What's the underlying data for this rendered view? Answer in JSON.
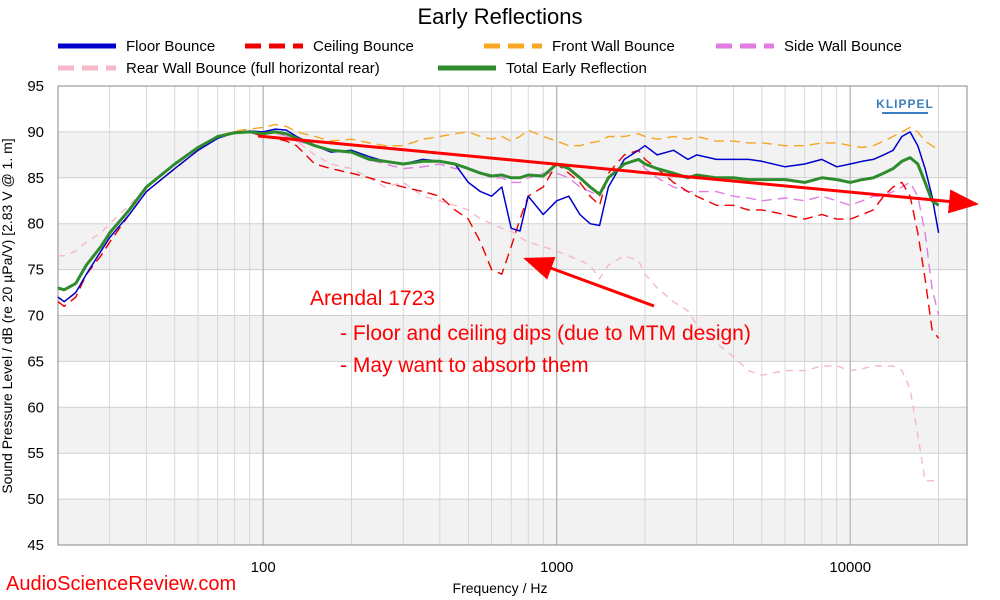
{
  "chart_data": {
    "type": "line",
    "title": "Early Reflections",
    "xlabel": "Frequency / Hz",
    "ylabel": "Sound Pressure Level / dB (re 20 µPa/V)  [2.83  V @ 1. m]",
    "x_scale": "log",
    "xlim": [
      20,
      25000
    ],
    "ylim": [
      45,
      95
    ],
    "x_ticks": [
      100,
      1000,
      10000
    ],
    "x_tick_labels": [
      "100",
      "1000",
      "10000"
    ],
    "y_ticks": [
      45,
      50,
      55,
      60,
      65,
      70,
      75,
      80,
      85,
      90,
      95
    ],
    "grid": true,
    "legend_position": "top",
    "x": [
      20,
      21,
      23,
      25,
      28,
      30,
      35,
      40,
      50,
      60,
      70,
      80,
      90,
      100,
      110,
      120,
      130,
      150,
      170,
      200,
      230,
      260,
      300,
      350,
      400,
      450,
      500,
      550,
      600,
      650,
      700,
      750,
      800,
      900,
      1000,
      1100,
      1200,
      1300,
      1400,
      1500,
      1700,
      1900,
      2000,
      2200,
      2500,
      2800,
      3000,
      3500,
      4000,
      4500,
      5000,
      6000,
      7000,
      8000,
      9000,
      10000,
      11000,
      12000,
      13000,
      14000,
      15000,
      16000,
      17000,
      18000,
      19000,
      20000
    ],
    "series": [
      {
        "name": "Floor Bounce",
        "color": "#0000cc",
        "dash": "solid",
        "values": [
          72,
          71.5,
          72.5,
          74.5,
          77,
          78.5,
          81,
          83.5,
          86,
          88,
          89.3,
          89.9,
          90.1,
          90,
          90.3,
          90.2,
          89.5,
          88.5,
          87.8,
          88,
          87.3,
          86.8,
          86.5,
          87,
          86.8,
          86.5,
          84.5,
          83.5,
          83,
          84,
          79.5,
          79.2,
          83,
          81,
          82.5,
          83,
          81,
          80,
          79.8,
          84,
          87,
          88,
          88.5,
          87.5,
          88,
          87,
          87.5,
          87,
          87,
          87,
          86.8,
          86.2,
          86.5,
          87,
          86.2,
          86.5,
          86.8,
          87,
          87.5,
          88,
          89.5,
          90,
          88.5,
          86,
          83,
          79
        ]
      },
      {
        "name": "Ceiling Bounce",
        "color": "#ee0000",
        "dash": "10,6",
        "values": [
          71.5,
          71,
          72,
          74.5,
          76.5,
          78,
          81,
          83.5,
          86,
          88,
          89.5,
          90,
          90,
          89.5,
          89.3,
          89,
          88.5,
          86.5,
          86,
          85.5,
          85,
          84.5,
          84,
          83.5,
          83,
          81.5,
          80.5,
          78,
          75,
          74.5,
          77.5,
          80.5,
          83,
          84,
          86.5,
          85.5,
          84.5,
          83,
          82,
          85.5,
          87.5,
          88,
          87,
          86,
          84.5,
          83.5,
          83,
          82,
          82,
          81.5,
          81.5,
          81,
          80.5,
          81,
          80.5,
          80.5,
          81,
          81.5,
          83,
          84,
          84.5,
          83,
          79,
          74,
          68.5,
          67.5
        ]
      },
      {
        "name": "Front Wall Bounce",
        "color": "#f5a623",
        "dash": "10,6",
        "values": [
          72,
          71.5,
          72.5,
          74.5,
          77,
          78.5,
          81,
          83.5,
          86,
          88,
          89.5,
          90.1,
          90.3,
          90.5,
          90.8,
          90.6,
          90,
          89.5,
          89,
          89.2,
          88.8,
          88.5,
          88.5,
          89.2,
          89.5,
          89.8,
          90,
          89.5,
          89.2,
          89.5,
          89,
          89.5,
          90.2,
          89.5,
          89,
          88.5,
          88.5,
          88.8,
          89,
          89.5,
          89.5,
          89.8,
          89.5,
          89.2,
          89.5,
          89.2,
          89.5,
          89,
          89,
          88.8,
          88.8,
          88.5,
          88.5,
          88.8,
          88.8,
          88.5,
          88.3,
          88.5,
          89,
          89.5,
          90,
          90.5,
          90,
          89,
          88.5,
          88
        ]
      },
      {
        "name": "Side Wall Bounce",
        "color": "#e27be2",
        "dash": "10,6",
        "values": [
          71.5,
          71,
          72,
          74.5,
          76.5,
          78,
          81,
          83.5,
          86,
          88,
          89.5,
          90,
          90,
          90,
          90,
          89.5,
          89,
          88.5,
          88,
          87.8,
          87,
          86.5,
          86,
          86.2,
          86.5,
          86,
          86,
          85.5,
          85,
          85,
          84.5,
          84.5,
          85,
          85.5,
          85.5,
          85,
          84,
          83.5,
          83,
          85,
          86.5,
          87,
          86,
          85,
          84,
          83.5,
          83.5,
          83.5,
          83,
          82.8,
          82.5,
          82.8,
          82.5,
          83,
          82.5,
          82,
          82.5,
          83,
          83,
          83.5,
          84,
          84.5,
          83,
          79,
          73,
          70
        ]
      },
      {
        "name": "Rear Wall Bounce (full horizontal rear)",
        "color": "#f5b8c8",
        "dash": "7,6",
        "values": [
          76.5,
          76.5,
          77,
          78,
          79,
          80,
          82,
          84,
          86.5,
          88,
          89.5,
          89.8,
          90,
          90,
          89.8,
          89.5,
          89,
          87.5,
          86.5,
          86,
          85,
          84,
          84.5,
          83,
          82.5,
          82,
          81.5,
          80.5,
          80,
          79.5,
          79.2,
          78.5,
          78,
          77.5,
          77,
          76.5,
          76,
          75.5,
          74,
          75.5,
          76.5,
          76,
          74.5,
          73,
          71.5,
          70.5,
          69,
          67,
          65.5,
          64,
          63.5,
          64,
          64,
          64.5,
          64.5,
          64,
          64.2,
          64.5,
          64.5,
          64.5,
          64,
          62,
          57,
          52,
          52,
          52
        ]
      },
      {
        "name": "Total Early Reflection",
        "color": "#2e8b2e",
        "dash": "solid",
        "values": [
          73,
          72.8,
          73.5,
          75.5,
          77.5,
          79,
          81.5,
          84,
          86.5,
          88.3,
          89.5,
          89.9,
          90,
          89.8,
          90,
          89.8,
          89.3,
          88.5,
          88,
          87.8,
          87,
          86.8,
          86.5,
          86.8,
          86.8,
          86.5,
          86,
          85.5,
          85.2,
          85.3,
          85,
          85,
          85.3,
          85.2,
          86.5,
          86,
          85,
          84,
          83.2,
          85,
          86.5,
          87,
          86.5,
          86,
          85.5,
          85,
          85.3,
          85,
          85,
          84.8,
          84.8,
          84.8,
          84.5,
          85,
          84.8,
          84.5,
          84.8,
          85,
          85.5,
          86,
          86.8,
          87.2,
          86.5,
          84.5,
          82.5,
          82
        ]
      }
    ],
    "annotations": {
      "title": "Arendal 1723",
      "lines": [
        "- Floor and ceiling dips (due to MTM design)",
        "- May want to absorb them"
      ]
    }
  },
  "branding": {
    "logo": "KLIPPEL",
    "watermark": "AudioScienceReview.com"
  },
  "colors": {
    "annotation": "#ff0000",
    "grid": "#d0d0d0",
    "plot_band": "#f2f2f2"
  }
}
